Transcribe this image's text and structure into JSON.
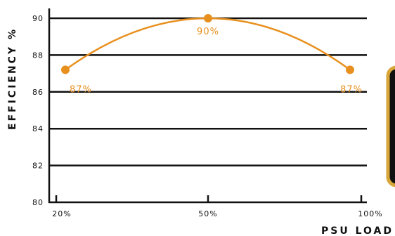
{
  "chart_data": {
    "type": "line",
    "xlabel": "PSU LOAD",
    "ylabel": "EFFICIENCY %",
    "x_ticks": [
      "20%",
      "50%",
      "100%"
    ],
    "y_ticks": [
      "80",
      "82",
      "84",
      "86",
      "88",
      "90"
    ],
    "ylim": [
      80,
      90
    ],
    "grid": true,
    "series": [
      {
        "color": "#e8901e",
        "points": [
          {
            "x": "20%",
            "y": 87.2,
            "label": "87%"
          },
          {
            "x": "50%",
            "y": 90,
            "label": "90%"
          },
          {
            "x": "100%",
            "y": 87.2,
            "label": "87%"
          }
        ]
      }
    ]
  },
  "colors": {
    "axis": "#111111",
    "series": "#e8901e",
    "panel_border": "#d9a63a",
    "panel_fill": "#111111"
  }
}
